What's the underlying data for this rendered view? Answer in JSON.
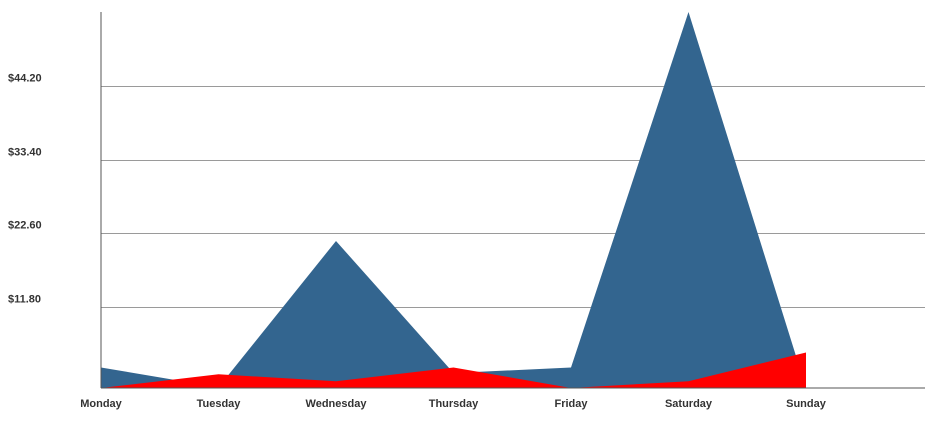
{
  "chart_data": {
    "type": "area",
    "categories": [
      "Monday",
      "Tuesday",
      "Wednesday",
      "Thursday",
      "Friday",
      "Saturday",
      "Sunday"
    ],
    "series": [
      {
        "values": [
          3.0,
          0.1,
          21.5,
          2.2,
          3.0,
          55.0,
          0.0
        ],
        "color": "#33658f"
      },
      {
        "values": [
          0.0,
          2.0,
          1.0,
          3.0,
          0.0,
          1.0,
          5.2
        ],
        "color": "#ff0000"
      }
    ],
    "yticks": [
      {
        "value": 11.8,
        "label": "$11.80"
      },
      {
        "value": 22.6,
        "label": "$22.60"
      },
      {
        "value": 33.4,
        "label": "$33.40"
      },
      {
        "value": 44.2,
        "label": "$44.20"
      }
    ],
    "ylim": [
      0,
      55
    ],
    "grid": true,
    "legend": "none"
  }
}
